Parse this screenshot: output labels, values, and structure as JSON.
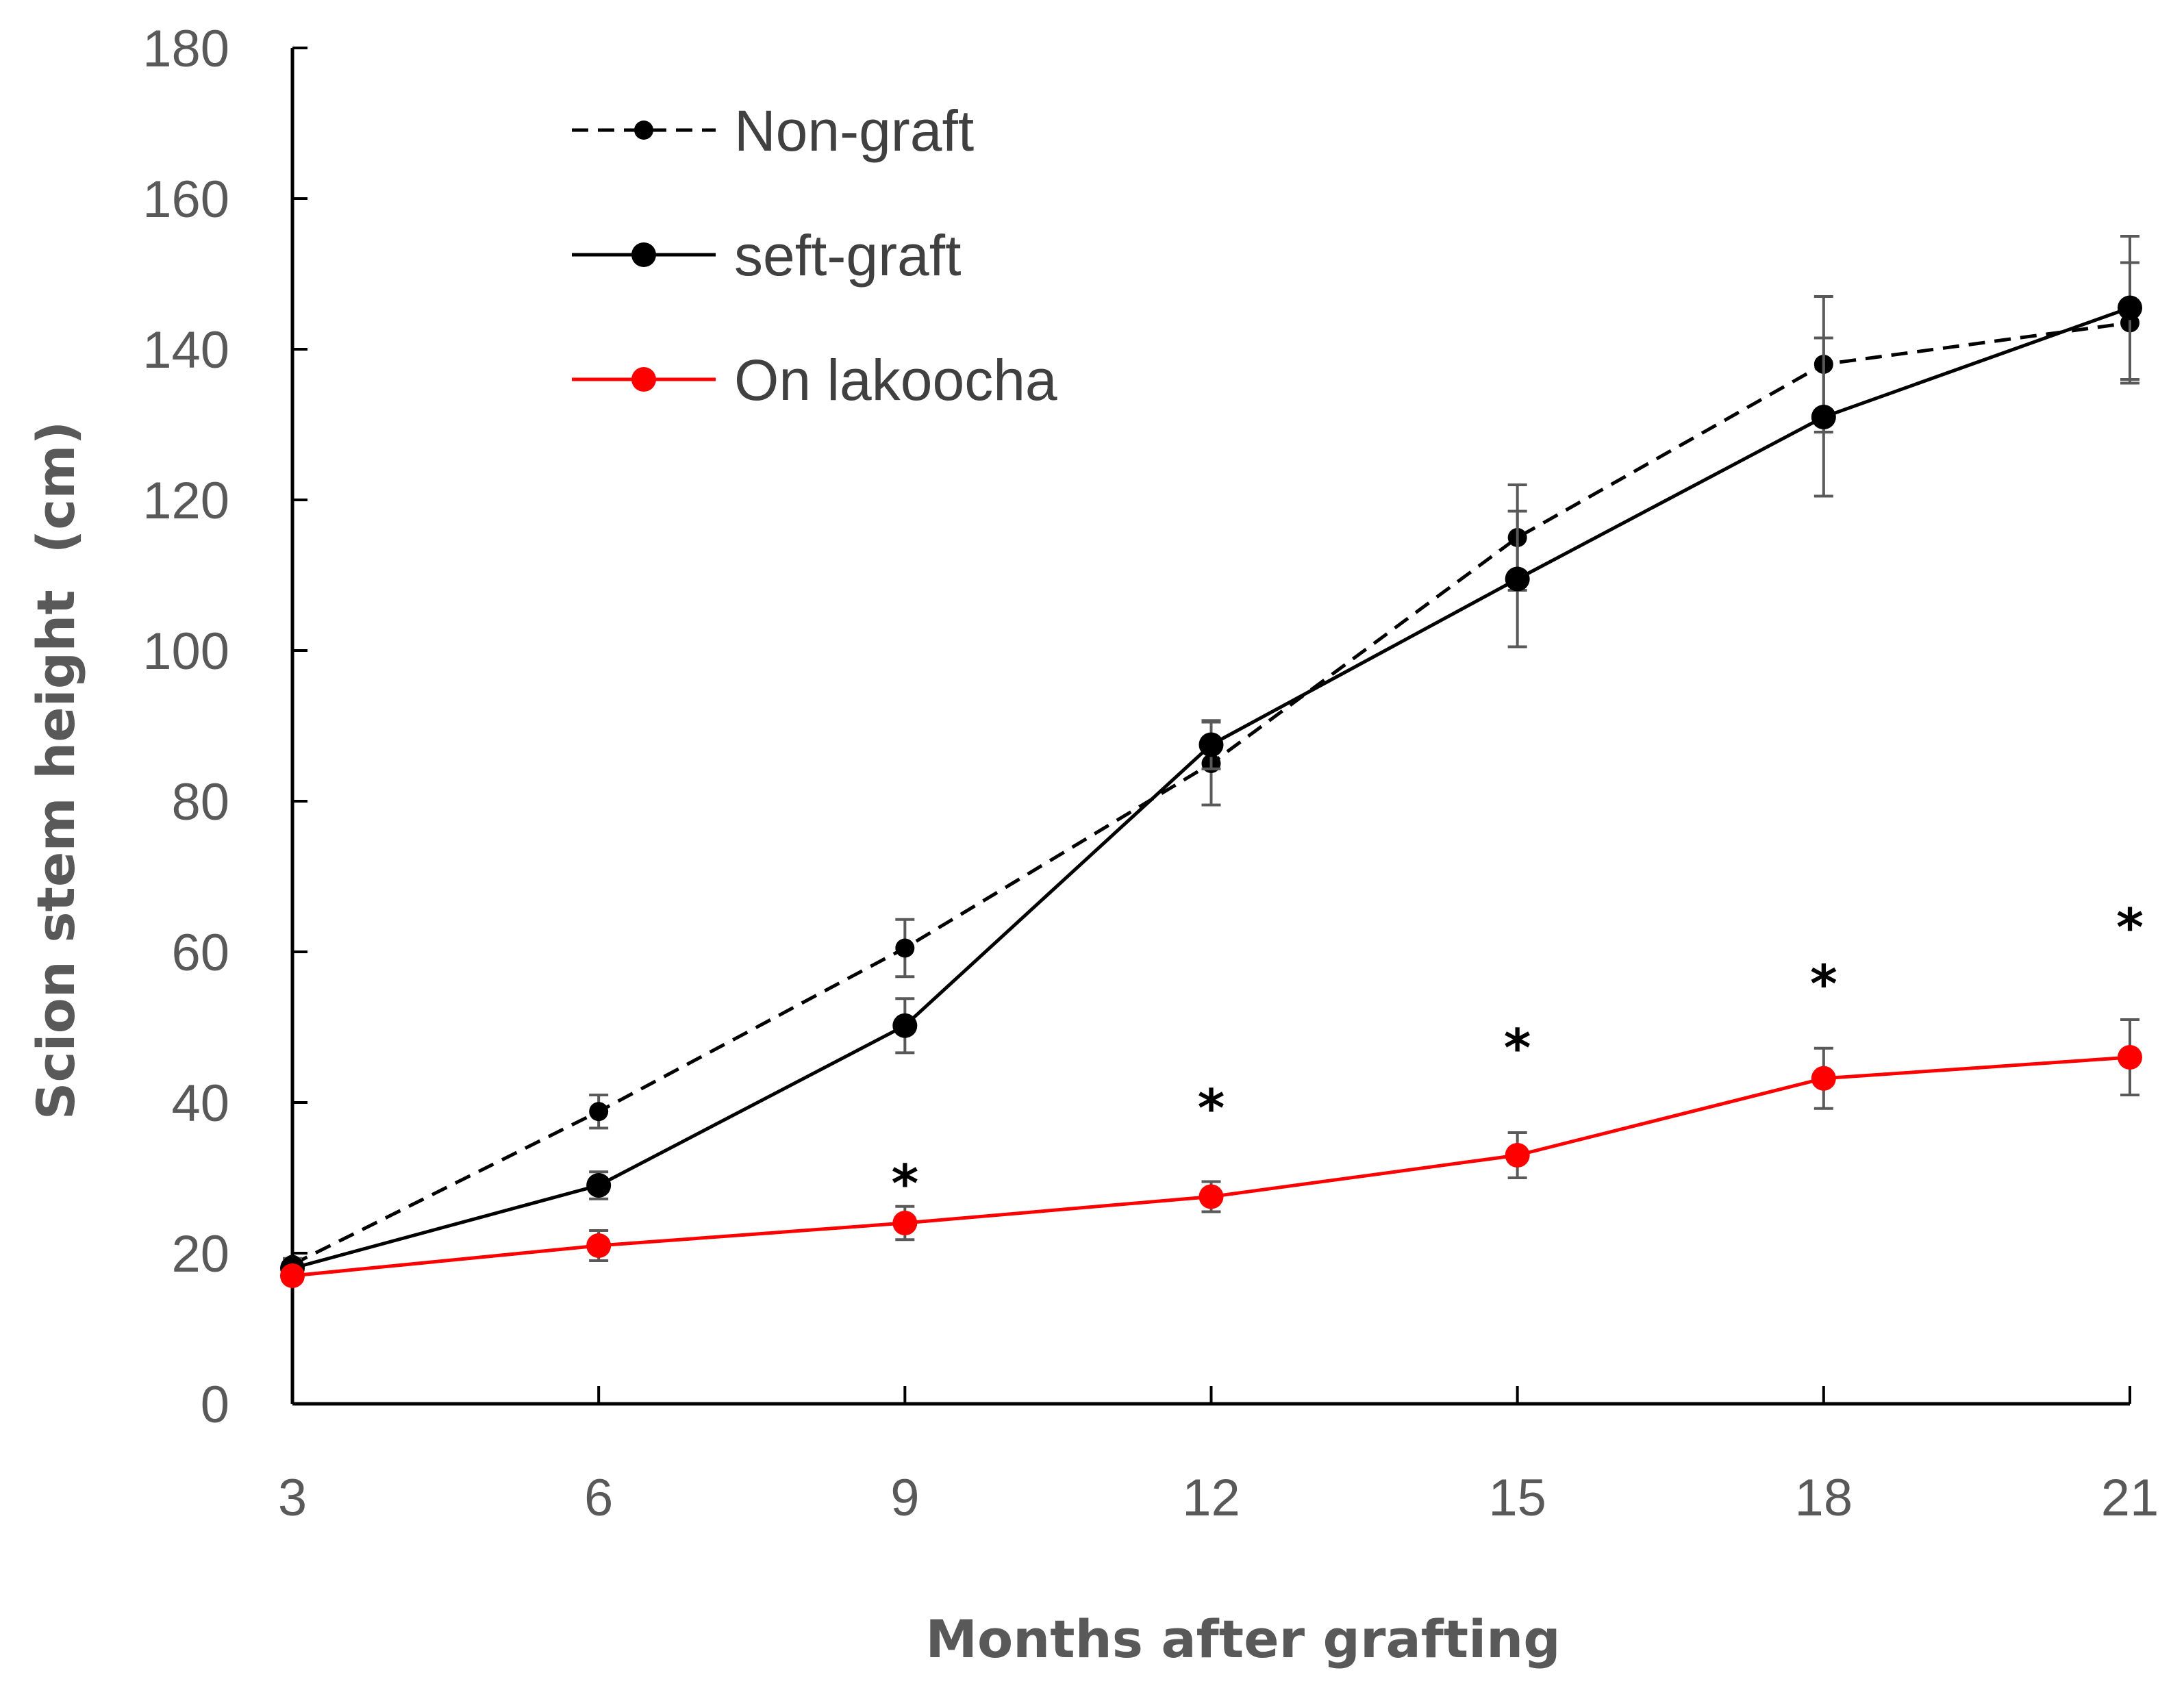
{
  "chart_data": {
    "type": "line",
    "title": "",
    "xlabel": "Months after grafting",
    "ylabel": "Scion stem height  (cm)",
    "x": [
      3,
      6,
      9,
      12,
      15,
      18,
      21
    ],
    "x_tick_labels": [
      "3",
      "6",
      "9",
      "12",
      "15",
      "18",
      "21"
    ],
    "xlim": [
      3,
      21
    ],
    "ylim": [
      0,
      180
    ],
    "y_ticks": [
      0,
      20,
      40,
      60,
      80,
      100,
      120,
      140,
      160,
      180
    ],
    "y_tick_labels": [
      "0",
      "20",
      "40",
      "60",
      "80",
      "100",
      "120",
      "140",
      "160",
      "180"
    ],
    "grid": false,
    "legend_position": "top-left",
    "series": [
      {
        "name": "Non-graft",
        "values": [
          18.5,
          38.8,
          60.5,
          85.0,
          115.0,
          138.0,
          143.5
        ],
        "errors": [
          0.8,
          2.2,
          3.8,
          5.5,
          7.0,
          9.0,
          8.0
        ],
        "color": "#000000",
        "line_style": "dashed",
        "marker": "circle-small"
      },
      {
        "name": "seft-graft",
        "values": [
          18.0,
          29.0,
          50.2,
          87.5,
          109.5,
          131.0,
          145.5
        ],
        "errors": [
          0.8,
          1.8,
          3.6,
          3.2,
          9.0,
          10.5,
          9.5
        ],
        "color": "#000000",
        "line_style": "solid",
        "marker": "circle"
      },
      {
        "name": "On lakoocha",
        "values": [
          17.0,
          21.0,
          24.0,
          27.5,
          33.0,
          43.2,
          46.0
        ],
        "errors": [
          0.5,
          2.0,
          2.2,
          2.0,
          3.0,
          4.0,
          5.0
        ],
        "color": "#ff0000",
        "line_style": "solid",
        "marker": "circle"
      }
    ],
    "annotations": [
      {
        "x": 9,
        "y": 30.5,
        "text": "*"
      },
      {
        "x": 12,
        "y": 40.5,
        "text": "*"
      },
      {
        "x": 15,
        "y": 48.5,
        "text": "*"
      },
      {
        "x": 18,
        "y": 57.0,
        "text": "*"
      },
      {
        "x": 21,
        "y": 64.5,
        "text": "*"
      }
    ]
  }
}
